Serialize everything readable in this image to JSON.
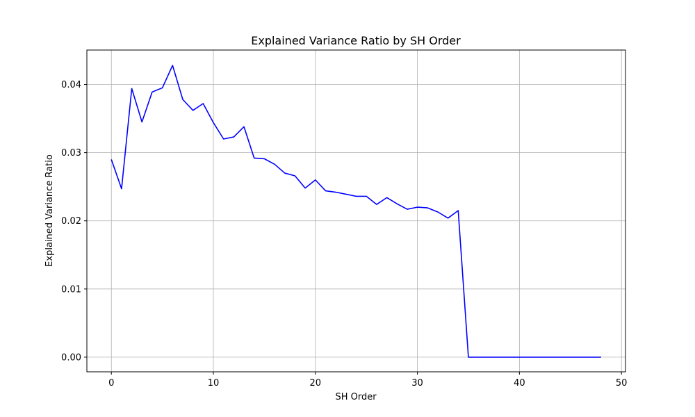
{
  "chart_data": {
    "type": "line",
    "title": "Explained Variance Ratio by SH Order",
    "xlabel": "SH Order",
    "ylabel": "Explained Variance Ratio",
    "xlim": [
      -2.4,
      50.4
    ],
    "ylim": [
      -0.00215,
      0.04505
    ],
    "x_ticks": [
      0,
      10,
      20,
      30,
      40,
      50
    ],
    "y_ticks": [
      0.0,
      0.01,
      0.02,
      0.03,
      0.04
    ],
    "x_tick_labels": [
      "0",
      "10",
      "20",
      "30",
      "40",
      "50"
    ],
    "y_tick_labels": [
      "0.00",
      "0.01",
      "0.02",
      "0.03",
      "0.04"
    ],
    "grid": true,
    "legend": "none",
    "colors": {
      "line": "#0000ff",
      "grid": "#b0b0b0",
      "axes": "#000000"
    },
    "series": [
      {
        "x": [
          0,
          1,
          2,
          3,
          4,
          5,
          6,
          7,
          8,
          9,
          10,
          11,
          12,
          13,
          14,
          15,
          16,
          17,
          18,
          19,
          20,
          21,
          22,
          23,
          24,
          25,
          26,
          27,
          28,
          29,
          30,
          31,
          32,
          33,
          34,
          35,
          36,
          37,
          38,
          39,
          40,
          41,
          42,
          43,
          44,
          45,
          46,
          47,
          48
        ],
        "values": [
          0.029,
          0.0247,
          0.0394,
          0.0345,
          0.0389,
          0.0395,
          0.0428,
          0.0378,
          0.0362,
          0.0372,
          0.0344,
          0.032,
          0.0323,
          0.0338,
          0.0292,
          0.0291,
          0.0283,
          0.027,
          0.0266,
          0.0248,
          0.026,
          0.0244,
          0.0242,
          0.0239,
          0.0236,
          0.0236,
          0.0224,
          0.0234,
          0.0225,
          0.0217,
          0.022,
          0.0219,
          0.0213,
          0.0204,
          0.0215,
          0.0,
          0.0,
          0.0,
          0.0,
          0.0,
          0.0,
          0.0,
          0.0,
          0.0,
          0.0,
          0.0,
          0.0,
          0.0,
          0.0
        ]
      }
    ]
  }
}
